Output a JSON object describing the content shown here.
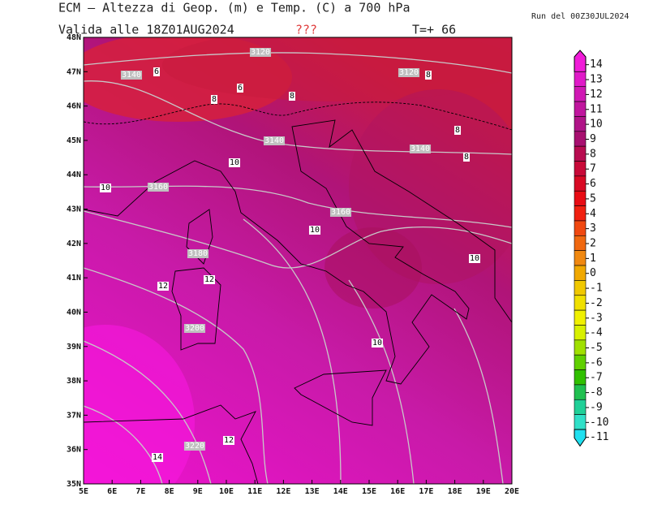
{
  "header": {
    "title": "ECM — Altezza di Geop. (m) e Temp. (C) a 700 hPa",
    "run": "Run del 00Z30JUL2024",
    "valid": "Valida alle 18Z01AUG2024",
    "flag": "???",
    "lead": "T=+ 66"
  },
  "map": {
    "lat_labels": [
      "35N",
      "36N",
      "37N",
      "38N",
      "39N",
      "40N",
      "41N",
      "42N",
      "43N",
      "44N",
      "45N",
      "46N",
      "47N",
      "48N"
    ],
    "lon_labels": [
      "5E",
      "6E",
      "7E",
      "8E",
      "9E",
      "10E",
      "11E",
      "12E",
      "13E",
      "14E",
      "15E",
      "16E",
      "17E",
      "18E",
      "19E",
      "20E"
    ],
    "geopotential_labels": [
      "3120",
      "3120",
      "3140",
      "3140",
      "3140",
      "3160",
      "3160",
      "3180",
      "3200",
      "3220"
    ],
    "temperature_labels": [
      "6",
      "6",
      "8",
      "8",
      "8",
      "8",
      "8",
      "10",
      "10",
      "10",
      "10",
      "10",
      "12",
      "12",
      "12",
      "14"
    ]
  },
  "colorbar": {
    "levels": [
      14,
      13,
      12,
      11,
      10,
      9,
      8,
      7,
      6,
      5,
      4,
      3,
      2,
      1,
      0,
      -1,
      -2,
      -3,
      -4,
      -5,
      -6,
      -7,
      -8,
      -9,
      -10,
      -11
    ],
    "colors": [
      "#f01cd8",
      "#e01ac8",
      "#d018b4",
      "#c0169e",
      "#b01488",
      "#a81070",
      "#b80c50",
      "#c80a38",
      "#d80a24",
      "#e80c14",
      "#f02010",
      "#f04810",
      "#f06810",
      "#f08810",
      "#f0a800",
      "#f0c800",
      "#f0e000",
      "#f0f000",
      "#d8f000",
      "#a0e000",
      "#60d000",
      "#30c000",
      "#20c050",
      "#20d098",
      "#30e0c8",
      "#20e0f0"
    ]
  }
}
